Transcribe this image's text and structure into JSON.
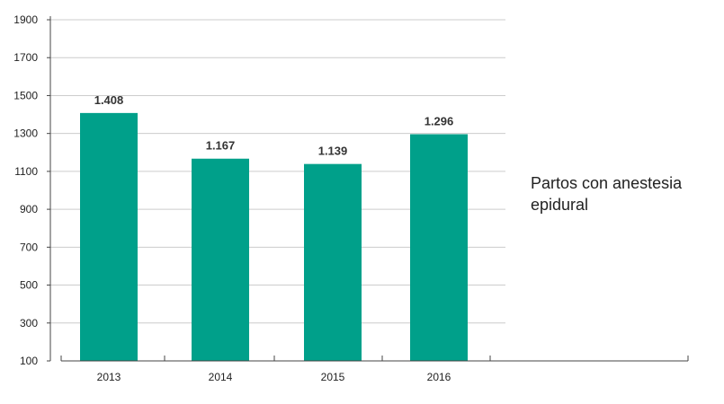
{
  "chart_data": {
    "type": "bar",
    "categories": [
      "2013",
      "2014",
      "2015",
      "2016"
    ],
    "values": [
      1408,
      1167,
      1139,
      1296
    ],
    "value_labels": [
      "1.408",
      "1.167",
      "1.139",
      "1.296"
    ],
    "series": [
      {
        "name": "Partos con anestesia epidural",
        "values": [
          1408,
          1167,
          1139,
          1296
        ]
      }
    ],
    "title": "",
    "xlabel": "",
    "ylabel": "",
    "ylim": [
      100,
      1900
    ],
    "yticks": [
      100,
      300,
      500,
      700,
      900,
      1100,
      1300,
      1500,
      1700,
      1900
    ],
    "grid": true,
    "legend_position": "right",
    "colors": {
      "bar": "#00a08a",
      "grid": "#cccccc",
      "axis": "#444444"
    }
  }
}
